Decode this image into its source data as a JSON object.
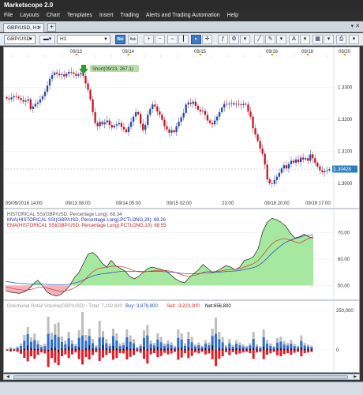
{
  "window": {
    "title": "Marketscope 2.0"
  },
  "menu": {
    "items": [
      "File",
      "Layouts",
      "Chart",
      "Templates",
      "Insert",
      "Trading",
      "Alerts and Trading Automation",
      "Help"
    ]
  },
  "tab": {
    "label": "GBP/USD, H1",
    "close": "×",
    "add": "+",
    "window_controls": "▾ ✕"
  },
  "toolbar": {
    "symbol": "GBP/USD",
    "timeframe": "H1",
    "bid_label": "Bid",
    "ask_label": "Ask"
  },
  "price_chart": {
    "date_labels_top": [
      "09/13",
      "09/14",
      "09/15",
      "09/16",
      "09/18",
      "09/20"
    ],
    "time_labels_bottom": [
      "09/09/2016 14:00",
      "09/13 08:00",
      "09/14 05:00",
      "09/15 02:00",
      "23:00",
      "09/18 20:00",
      "09/19 17:00"
    ],
    "price_ticks": [
      "1.3300",
      "1.3200",
      "1.3100",
      "1.3000"
    ],
    "current_price": "1.30428",
    "annotation": "Short(09/13, 267.1)"
  },
  "ssi_panel": {
    "label_1": "HISTORICAL SSI(GBP/USD, Percentage Long): 68.34",
    "label_2": "MVA(HISTORICAL SSI(GBP/USD, Percentage Long).PCTLONG,24): 69.26",
    "label_3": "EMA(HISTORICAL SSI(GBP/USD, Percentage Long).PCTLONG,10): 68.55",
    "ticks": [
      "70.00",
      "60.00",
      "50.00"
    ]
  },
  "volume_panel": {
    "title": "Directional Retail Volume(GBP/USD) - Total: 7,102,600",
    "buy_label": "Buy:",
    "buy_value": "3,879,800",
    "sell_label": "Sell:",
    "sell_value": "-3,223,000",
    "net_label": "Net:",
    "net_value": "656,800",
    "ticks": [
      "250,000",
      "0"
    ]
  },
  "colors": {
    "bull": "#2a4aa8",
    "bear": "#c0182b",
    "ssi_fill": "#a6e8a0",
    "ssi_fill_low": "#f2b4b8",
    "ssi_line": "#000000",
    "mva_line": "#2a3ab8",
    "ema_line": "#d83030",
    "vol_total": "#bdbdbd",
    "vol_buy": "#2f6fd0",
    "vol_sell": "#e0202a",
    "vol_net": "#111111"
  },
  "chart_data": [
    {
      "type": "candlestick",
      "title": "GBP/USD, H1",
      "ylim": [
        1.296,
        1.339
      ],
      "series": [
        {
          "name": "GBP/USD",
          "close": [
            1.3265,
            1.3262,
            1.3268,
            1.3272,
            1.327,
            1.3266,
            1.326,
            1.3255,
            1.3258,
            1.3262,
            1.3232,
            1.324,
            1.3248,
            1.3252,
            1.3262,
            1.3272,
            1.3286,
            1.3305,
            1.3326,
            1.3338,
            1.3346,
            1.3342,
            1.3338,
            1.334,
            1.3334,
            1.3342,
            1.3348,
            1.3346,
            1.3342,
            1.3336,
            1.334,
            1.3344,
            1.3336,
            1.3312,
            1.3292,
            1.3262,
            1.3222,
            1.3188,
            1.3178,
            1.3192,
            1.3184,
            1.319,
            1.3196,
            1.3182,
            1.3174,
            1.318,
            1.3184,
            1.3188,
            1.3176,
            1.3168,
            1.316,
            1.3176,
            1.3192,
            1.3208,
            1.3222,
            1.3216,
            1.3186,
            1.3166,
            1.3182,
            1.3214,
            1.3232,
            1.3246,
            1.324,
            1.3224,
            1.3214,
            1.3198,
            1.3178,
            1.3168,
            1.3158,
            1.3165,
            1.316,
            1.3178,
            1.3192,
            1.3206,
            1.322,
            1.3246,
            1.3252,
            1.3248,
            1.3255,
            1.3242,
            1.323,
            1.3224,
            1.3226,
            1.3214,
            1.3196,
            1.3188,
            1.3184,
            1.3196,
            1.3208,
            1.3222,
            1.3236,
            1.3248,
            1.3246,
            1.3248,
            1.325,
            1.3246,
            1.3248,
            1.3246,
            1.3244,
            1.3248,
            1.3246,
            1.3224,
            1.3208,
            1.3172,
            1.3152,
            1.3132,
            1.3108,
            1.3092,
            1.3058,
            1.3012,
            1.3,
            1.2998,
            1.301,
            1.302,
            1.3032,
            1.3046,
            1.3056,
            1.3046,
            1.306,
            1.307,
            1.3064,
            1.3074,
            1.3066,
            1.308,
            1.3074,
            1.3078,
            1.307,
            1.309,
            1.3078,
            1.3064,
            1.3052,
            1.304,
            1.3034,
            1.3038,
            1.304,
            1.3044
          ]
        }
      ]
    },
    {
      "type": "area",
      "title": "HISTORICAL SSI(GBP/USD, Percentage Long)",
      "ylim": [
        45,
        78
      ],
      "series": [
        {
          "name": "HISTORICAL SSI",
          "values": [
            48.0,
            47.5,
            47.2,
            47.0,
            47.5,
            48.5,
            50.5,
            52.0,
            50.0,
            47.5,
            46.5,
            46.0,
            46.5,
            48.0,
            50.0,
            53.0,
            55.0,
            58.5,
            62.0,
            62.5,
            61.0,
            58.5,
            57.0,
            59.5,
            57.5,
            56.5,
            55.5,
            53.5,
            52.5,
            53.5,
            55.0,
            56.5,
            57.0,
            56.5,
            56.0,
            55.5,
            54.0,
            52.5,
            51.5,
            51.0,
            53.0,
            54.5,
            56.0,
            58.0,
            56.5,
            55.0,
            55.5,
            56.5,
            57.5,
            57.0,
            56.0,
            57.0,
            59.5,
            60.0,
            61.0,
            64.0,
            70.5,
            74.0,
            75.5,
            75.0,
            74.0,
            72.5,
            70.0,
            68.0,
            68.5,
            69.5,
            68.5,
            68.0
          ]
        },
        {
          "name": "MVA",
          "values": [
            51.5,
            51.3,
            51.0,
            50.8,
            50.7,
            50.6,
            50.6,
            50.6,
            50.5,
            50.4,
            50.3,
            50.2,
            50.2,
            50.3,
            50.5,
            50.9,
            51.4,
            52.1,
            52.9,
            53.6,
            54.1,
            54.4,
            54.6,
            54.9,
            55.1,
            55.3,
            55.4,
            55.4,
            55.4,
            55.4,
            55.3,
            55.3,
            55.3,
            55.3,
            55.3,
            55.2,
            55.1,
            54.9,
            54.7,
            54.5,
            54.4,
            54.4,
            54.5,
            54.7,
            54.8,
            54.9,
            55.0,
            55.1,
            55.3,
            55.4,
            55.5,
            55.7,
            56.0,
            56.4,
            56.8,
            57.5,
            58.8,
            60.4,
            62.2,
            63.8,
            65.2,
            66.4,
            67.2,
            67.8,
            68.3,
            68.8,
            69.1,
            69.26
          ]
        },
        {
          "name": "EMA",
          "values": [
            49.5,
            49.1,
            48.7,
            48.4,
            48.2,
            48.3,
            48.7,
            49.3,
            49.4,
            49.0,
            48.6,
            48.1,
            47.9,
            47.9,
            48.3,
            49.1,
            50.2,
            51.7,
            53.6,
            55.2,
            56.3,
            56.7,
            56.8,
            57.3,
            57.3,
            57.2,
            56.9,
            56.3,
            55.6,
            55.2,
            55.1,
            55.3,
            55.5,
            55.7,
            55.7,
            55.7,
            55.4,
            54.9,
            54.3,
            53.7,
            53.6,
            53.8,
            54.2,
            55.0,
            55.3,
            55.2,
            55.3,
            55.5,
            55.9,
            56.1,
            56.1,
            56.3,
            57.0,
            57.6,
            58.3,
            59.5,
            61.5,
            63.8,
            65.8,
            67.0,
            67.6,
            67.7,
            67.2,
            66.6,
            66.0,
            67.0,
            67.8,
            68.55
          ]
        }
      ],
      "ticks": [
        50,
        60,
        70
      ]
    },
    {
      "type": "bar",
      "title": "Directional Retail Volume(GBP/USD)",
      "ylim": [
        -130000,
        260000
      ],
      "series": [
        {
          "name": "Total",
          "values": [
            9000,
            18000,
            11000,
            23000,
            42000,
            95000,
            145000,
            80000,
            105000,
            60000,
            32000,
            40000,
            210000,
            110000,
            165000,
            175000,
            85000,
            60000,
            115000,
            62000,
            38000,
            125000,
            240000,
            95000,
            135000,
            70000,
            30000,
            185000,
            120000,
            70000,
            42000,
            135000,
            105000,
            42000,
            48000,
            130000,
            92000,
            70000,
            20000,
            38000,
            125000,
            158000,
            60000,
            45000,
            105000,
            82000,
            40000,
            62000,
            48000,
            26000,
            130000,
            105000,
            42000,
            115000,
            82000,
            36000,
            48000,
            28000,
            62000,
            48000,
            135000,
            205000,
            115000,
            82000,
            30000,
            70000,
            32000,
            62000,
            48000,
            36000,
            26000,
            43000,
            115000,
            36000,
            24000,
            130000,
            65000,
            42000,
            26000,
            75000,
            84000,
            56000,
            44000,
            64000,
            38000,
            28000,
            92000,
            44000,
            36000,
            28000
          ]
        },
        {
          "name": "Buy",
          "values": [
            3000,
            9000,
            6000,
            14000,
            25000,
            58000,
            100000,
            52000,
            62000,
            36000,
            18000,
            24000,
            102000,
            66000,
            96000,
            82000,
            50000,
            36000,
            74000,
            38000,
            24000,
            76000,
            92000,
            58000,
            88000,
            42000,
            18000,
            78000,
            80000,
            42000,
            24000,
            88000,
            60000,
            24000,
            30000,
            80000,
            52000,
            42000,
            12000,
            24000,
            76000,
            92000,
            38000,
            28000,
            66000,
            48000,
            26000,
            38000,
            30000,
            16000,
            76000,
            66000,
            26000,
            70000,
            48000,
            22000,
            30000,
            18000,
            40000,
            30000,
            88000,
            102000,
            68000,
            48000,
            18000,
            42000,
            20000,
            40000,
            30000,
            22000,
            16000,
            28000,
            70000,
            22000,
            14000,
            80000,
            40000,
            26000,
            16000,
            46000,
            52000,
            34000,
            28000,
            40000,
            24000,
            18000,
            56000,
            28000,
            22000,
            18000
          ]
        },
        {
          "name": "Sell",
          "values": [
            -4000,
            -10000,
            -6000,
            -12000,
            -24000,
            -50000,
            -72000,
            -40000,
            -55000,
            -30000,
            -16000,
            -22000,
            -108000,
            -52000,
            -80000,
            -96000,
            -40000,
            -28000,
            -52000,
            -28000,
            -16000,
            -58000,
            -92000,
            -46000,
            -60000,
            -32000,
            -14000,
            -70000,
            -48000,
            -32000,
            -20000,
            -62000,
            -50000,
            -20000,
            -22000,
            -60000,
            -44000,
            -32000,
            -10000,
            -18000,
            -56000,
            -86000,
            -28000,
            -20000,
            -46000,
            -38000,
            -18000,
            -28000,
            -22000,
            -12000,
            -62000,
            -48000,
            -20000,
            -52000,
            -38000,
            -16000,
            -22000,
            -12000,
            -28000,
            -22000,
            -58000,
            -102000,
            -56000,
            -40000,
            -14000,
            -32000,
            -14000,
            -28000,
            -22000,
            -16000,
            -12000,
            -20000,
            -56000,
            -16000,
            -12000,
            -58000,
            -30000,
            -20000,
            -12000,
            -34000,
            -40000,
            -26000,
            -20000,
            -30000,
            -18000,
            -12000,
            -40000,
            -20000,
            -16000,
            -12000
          ]
        }
      ],
      "ticks": [
        0,
        250000
      ]
    }
  ]
}
